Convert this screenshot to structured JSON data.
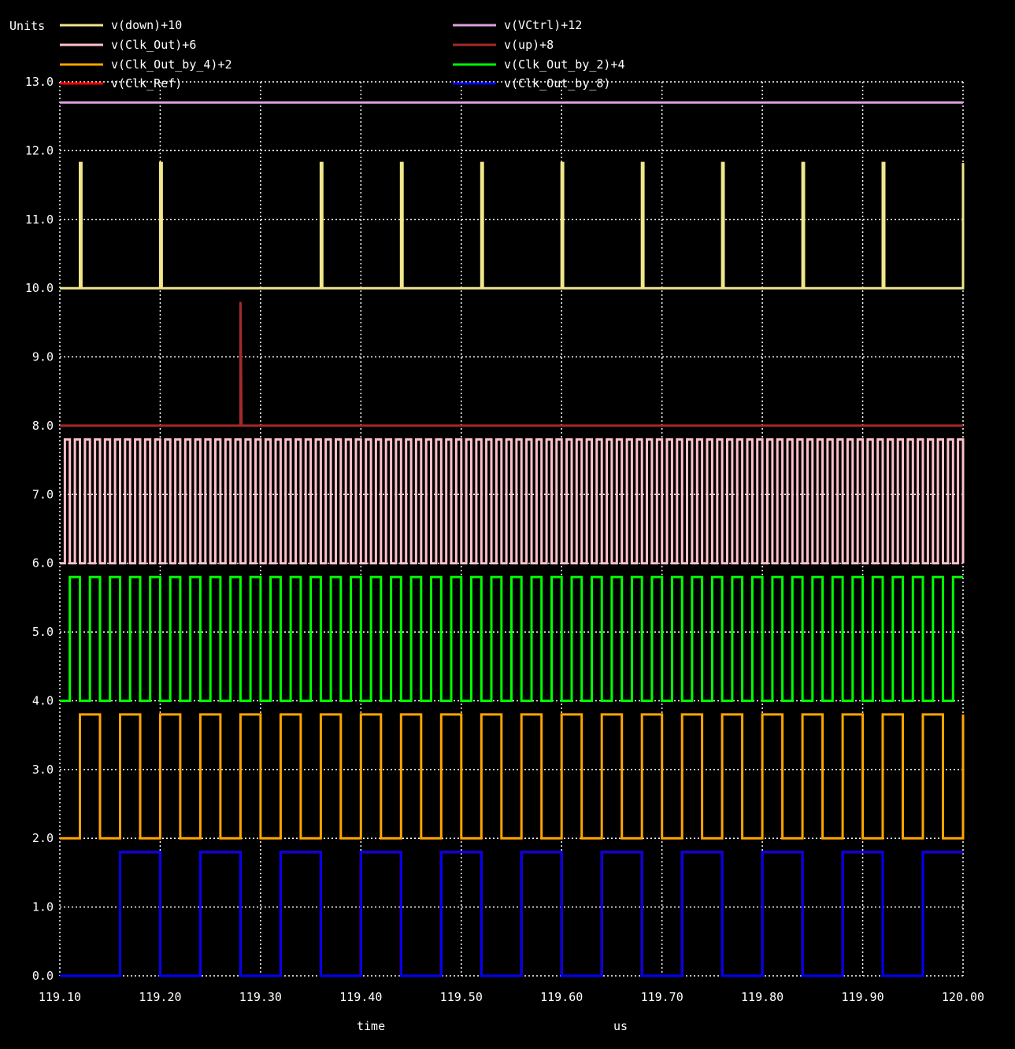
{
  "chart_data": {
    "type": "line",
    "y_axis_label": "Units",
    "x_axis_label": "time",
    "x_unit_label": "us",
    "xlim": [
      119.1,
      120.0
    ],
    "ylim": [
      0.0,
      13.0
    ],
    "grid": true,
    "x_ticks": [
      "119.10",
      "119.20",
      "119.30",
      "119.40",
      "119.50",
      "119.60",
      "119.70",
      "119.80",
      "119.90",
      "120.00"
    ],
    "y_ticks": [
      "0.0",
      "1.0",
      "2.0",
      "3.0",
      "4.0",
      "5.0",
      "6.0",
      "7.0",
      "8.0",
      "9.0",
      "10.0",
      "11.0",
      "12.0",
      "13.0"
    ],
    "background": "#000000",
    "grid_color": "#ffffff",
    "series": [
      {
        "name": "v(down)+10",
        "color": "#f0e68c",
        "kind": "pulse",
        "low": 10.0,
        "high": 11.82,
        "pulse_times": [
          119.12,
          119.2,
          119.36,
          119.44,
          119.52,
          119.6,
          119.68,
          119.76,
          119.84,
          119.92,
          120.0
        ]
      },
      {
        "name": "v(VCtrl)+12",
        "color": "#dda0dd",
        "kind": "constant",
        "value": 12.7
      },
      {
        "name": "v(Clk_Out)+6",
        "color": "#ffc0cb",
        "kind": "square",
        "low": 6.0,
        "high": 7.8,
        "period": 0.01,
        "start": 119.1
      },
      {
        "name": "v(up)+8",
        "color": "#a52a2a",
        "kind": "constant_spike",
        "value": 8.0,
        "spike_time": 119.28,
        "spike_value": 9.8
      },
      {
        "name": "v(Clk_Out_by_4)+2",
        "color": "#ffa500",
        "kind": "square",
        "low": 2.0,
        "high": 3.8,
        "period": 0.04,
        "start": 119.1
      },
      {
        "name": "v(Clk_Out_by_2)+4",
        "color": "#00ff00",
        "kind": "square",
        "low": 4.0,
        "high": 5.8,
        "period": 0.02,
        "start": 119.1
      },
      {
        "name": "v(Clk_Ref)",
        "color": "#ff0000",
        "kind": "square",
        "low": 0.0,
        "high": 1.8,
        "period": 0.08,
        "start": 119.12
      },
      {
        "name": "v(Clk_Out_by_8)",
        "color": "#0000ff",
        "kind": "square",
        "low": 0.0,
        "high": 1.8,
        "period": 0.08,
        "start": 119.12
      }
    ]
  }
}
